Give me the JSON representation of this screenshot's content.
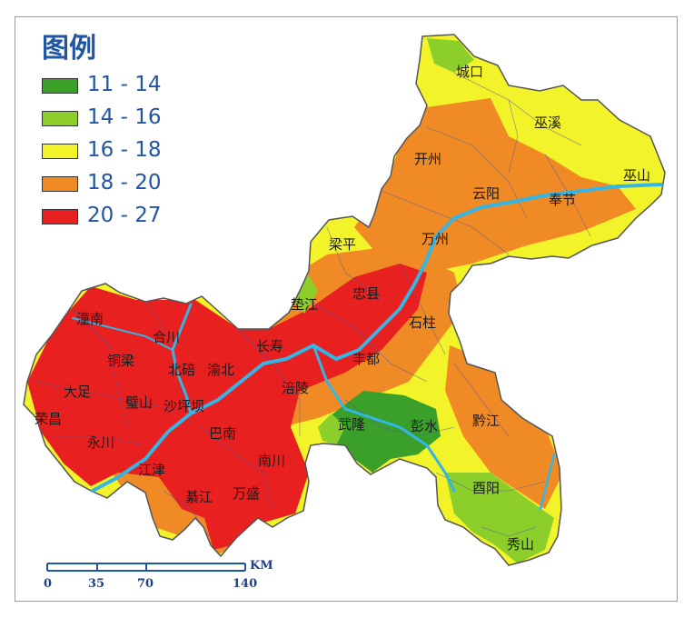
{
  "legend": {
    "title": "图例",
    "items": [
      {
        "label": "11 - 14",
        "color": "#3aa02a"
      },
      {
        "label": "14 - 16",
        "color": "#8ccf2a"
      },
      {
        "label": "16 - 18",
        "color": "#f3f32a"
      },
      {
        "label": "18 - 20",
        "color": "#f08a25"
      },
      {
        "label": "20 - 27",
        "color": "#e82020"
      }
    ]
  },
  "places": [
    "城口",
    "巫溪",
    "开州",
    "云阳",
    "巫山",
    "奉节",
    "万州",
    "梁平",
    "垫江",
    "忠县",
    "石柱",
    "丰都",
    "长寿",
    "涪陵",
    "渝北",
    "北碚",
    "合川",
    "潼南",
    "铜梁",
    "大足",
    "荣昌",
    "永川",
    "璧山",
    "沙坪坝",
    "巴南",
    "江津",
    "綦江",
    "万盛",
    "南川",
    "武隆",
    "彭水",
    "黔江",
    "酉阳",
    "秀山"
  ],
  "scale_bar": {
    "unit": "KM",
    "ticks": [
      "0",
      "35",
      "70",
      "140"
    ]
  },
  "colors": {
    "river": "#33b6e6",
    "boundary": "#4a5aa8",
    "outline": "#555555",
    "text_blue": "#2156a5"
  }
}
